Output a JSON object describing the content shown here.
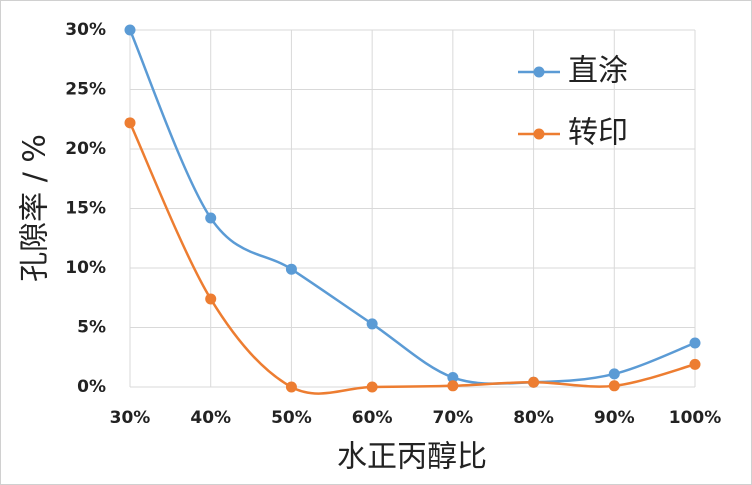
{
  "chart_data": {
    "type": "line",
    "x_label": "水正丙醇比",
    "y_label": "孔隙率 / %",
    "x": [
      30,
      40,
      50,
      60,
      70,
      80,
      90,
      100
    ],
    "xlim": [
      30,
      100
    ],
    "xticks": [
      {
        "value": 30,
        "label": "30%"
      },
      {
        "value": 40,
        "label": "40%"
      },
      {
        "value": 50,
        "label": "50%"
      },
      {
        "value": 60,
        "label": "60%"
      },
      {
        "value": 70,
        "label": "70%"
      },
      {
        "value": 80,
        "label": "80%"
      },
      {
        "value": 90,
        "label": "90%"
      },
      {
        "value": 100,
        "label": "100%"
      }
    ],
    "ylim": [
      0,
      30
    ],
    "yticks": [
      {
        "value": 0,
        "label": "0%"
      },
      {
        "value": 5,
        "label": "5%"
      },
      {
        "value": 10,
        "label": "10%"
      },
      {
        "value": 15,
        "label": "15%"
      },
      {
        "value": 20,
        "label": "20%"
      },
      {
        "value": 25,
        "label": "25%"
      },
      {
        "value": 30,
        "label": "30%"
      }
    ],
    "grid": true,
    "smooth": true,
    "legend": "upper right",
    "series": [
      {
        "name": "直涂",
        "color": "#5b9bd5",
        "values": [
          30,
          14.2,
          9.9,
          5.3,
          0.8,
          0.4,
          1.1,
          3.7
        ]
      },
      {
        "name": "转印",
        "color": "#ed7d31",
        "values": [
          22.2,
          7.4,
          0,
          0,
          0.1,
          0.4,
          0.1,
          1.9
        ]
      }
    ]
  }
}
